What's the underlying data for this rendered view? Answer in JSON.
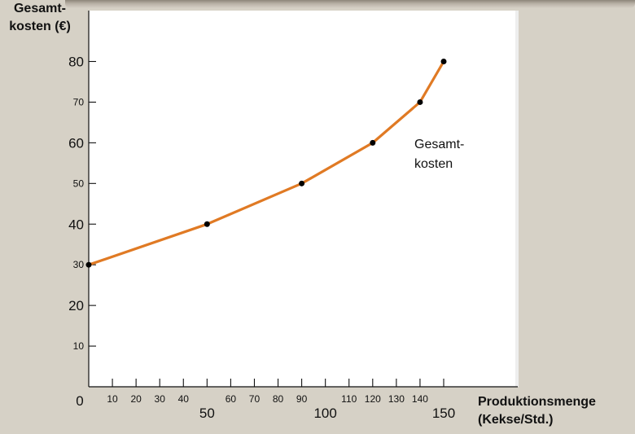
{
  "chart_data": {
    "type": "line",
    "y_title_lines": [
      "Gesamt-",
      "kosten (€)"
    ],
    "x_title_lines": [
      "Produktionsmenge",
      "(Kekse/Std.)"
    ],
    "x": [
      0,
      50,
      90,
      120,
      140,
      150
    ],
    "values": [
      30,
      40,
      50,
      60,
      70,
      80
    ],
    "xlim": [
      0,
      150
    ],
    "ylim": [
      0,
      90
    ],
    "y_ticks": [
      {
        "value": 10,
        "label": "10",
        "major": false
      },
      {
        "value": 20,
        "label": "20",
        "major": true
      },
      {
        "value": 30,
        "label": "30",
        "major": false
      },
      {
        "value": 40,
        "label": "40",
        "major": true
      },
      {
        "value": 50,
        "label": "50",
        "major": false
      },
      {
        "value": 60,
        "label": "60",
        "major": true
      },
      {
        "value": 70,
        "label": "70",
        "major": false
      },
      {
        "value": 80,
        "label": "80",
        "major": true
      }
    ],
    "x_ticks": [
      {
        "value": 10,
        "label": "10",
        "major": false
      },
      {
        "value": 20,
        "label": "20",
        "major": false
      },
      {
        "value": 30,
        "label": "30",
        "major": false
      },
      {
        "value": 40,
        "label": "40",
        "major": false
      },
      {
        "value": 50,
        "label": "50",
        "major": true
      },
      {
        "value": 60,
        "label": "60",
        "major": false
      },
      {
        "value": 70,
        "label": "70",
        "major": false
      },
      {
        "value": 80,
        "label": "80",
        "major": false
      },
      {
        "value": 90,
        "label": "90",
        "major": false
      },
      {
        "value": 100,
        "label": "100",
        "major": true
      },
      {
        "value": 110,
        "label": "110",
        "major": false
      },
      {
        "value": 120,
        "label": "120",
        "major": false
      },
      {
        "value": 130,
        "label": "130",
        "major": false
      },
      {
        "value": 140,
        "label": "140",
        "major": false
      },
      {
        "value": 150,
        "label": "150",
        "major": true
      }
    ],
    "origin_label": "0",
    "series_label_lines": [
      "Gesamt-",
      "kosten"
    ],
    "line_color": "#e07a24",
    "point_color": "#000000",
    "background_color": "#d6d1c6",
    "plot_color": "#ffffff",
    "grid": false
  }
}
